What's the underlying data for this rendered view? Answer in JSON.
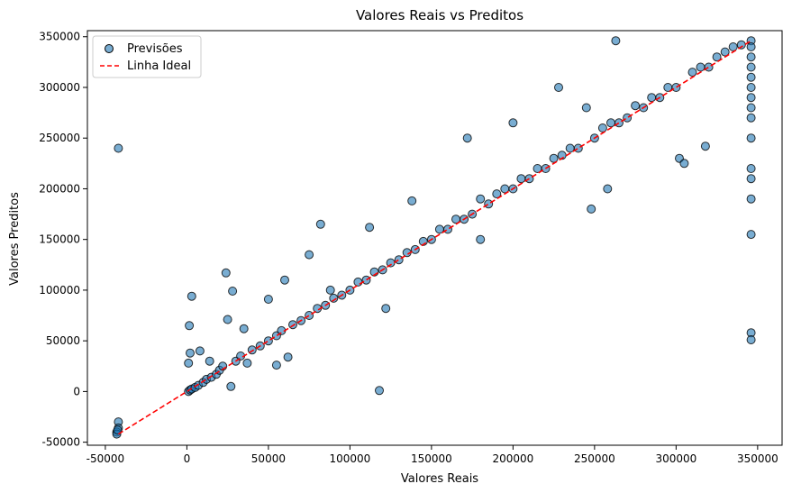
{
  "chart_data": {
    "type": "scatter",
    "title": "Valores Reais vs Preditos",
    "xlabel": "Valores Reais",
    "ylabel": "Valores Preditos",
    "xlim": [
      -61000,
      365000
    ],
    "ylim": [
      -53000,
      356000
    ],
    "xticks": [
      -50000,
      0,
      50000,
      100000,
      150000,
      200000,
      250000,
      300000,
      350000
    ],
    "yticks": [
      -50000,
      0,
      50000,
      100000,
      150000,
      200000,
      250000,
      300000,
      350000
    ],
    "grid": false,
    "legend": {
      "position": "top-left",
      "entries": [
        {
          "label": "Previsões",
          "marker": "circle",
          "color": "#1f77b4"
        },
        {
          "label": "Linha Ideal",
          "marker": "dashed-line",
          "color": "#ff0000"
        }
      ]
    },
    "series": [
      {
        "name": "Previsões",
        "color": "#1f77b4",
        "edgecolor": "#000000",
        "alpha": 0.6,
        "note_visible_outliers": true,
        "points": [
          [
            -42000,
            240000
          ],
          [
            -42000,
            -30000
          ],
          [
            -42000,
            -36000
          ],
          [
            -43000,
            -40000
          ],
          [
            -43000,
            -42000
          ],
          [
            -42500,
            -38000
          ],
          [
            1000,
            0
          ],
          [
            2000,
            1500
          ],
          [
            3000,
            2500
          ],
          [
            1500,
            65000
          ],
          [
            3000,
            94000
          ],
          [
            2000,
            38000
          ],
          [
            1000,
            28000
          ],
          [
            5000,
            4000
          ],
          [
            7000,
            6000
          ],
          [
            10000,
            9000
          ],
          [
            12000,
            12000
          ],
          [
            15000,
            14000
          ],
          [
            18000,
            17000
          ],
          [
            20000,
            21000
          ],
          [
            8000,
            40000
          ],
          [
            14000,
            30000
          ],
          [
            24000,
            117000
          ],
          [
            28000,
            99000
          ],
          [
            25000,
            71000
          ],
          [
            22000,
            25000
          ],
          [
            27000,
            5000
          ],
          [
            30000,
            30000
          ],
          [
            33000,
            35000
          ],
          [
            35000,
            62000
          ],
          [
            37000,
            28000
          ],
          [
            40000,
            41000
          ],
          [
            45000,
            45000
          ],
          [
            50000,
            50000
          ],
          [
            50000,
            91000
          ],
          [
            55000,
            55000
          ],
          [
            55000,
            26000
          ],
          [
            58000,
            60000
          ],
          [
            60000,
            110000
          ],
          [
            62000,
            34000
          ],
          [
            65000,
            66000
          ],
          [
            70000,
            70000
          ],
          [
            75000,
            75000
          ],
          [
            75000,
            135000
          ],
          [
            80000,
            82000
          ],
          [
            82000,
            165000
          ],
          [
            85000,
            85000
          ],
          [
            88000,
            100000
          ],
          [
            90000,
            92000
          ],
          [
            95000,
            95000
          ],
          [
            100000,
            100000
          ],
          [
            105000,
            108000
          ],
          [
            110000,
            110000
          ],
          [
            112000,
            162000
          ],
          [
            115000,
            118000
          ],
          [
            118000,
            1000
          ],
          [
            120000,
            120000
          ],
          [
            122000,
            82000
          ],
          [
            125000,
            127000
          ],
          [
            130000,
            130000
          ],
          [
            135000,
            137000
          ],
          [
            138000,
            188000
          ],
          [
            140000,
            140000
          ],
          [
            145000,
            148000
          ],
          [
            150000,
            150000
          ],
          [
            155000,
            160000
          ],
          [
            160000,
            160000
          ],
          [
            165000,
            170000
          ],
          [
            170000,
            170000
          ],
          [
            172000,
            250000
          ],
          [
            175000,
            175000
          ],
          [
            180000,
            190000
          ],
          [
            180000,
            150000
          ],
          [
            185000,
            185000
          ],
          [
            190000,
            195000
          ],
          [
            195000,
            200000
          ],
          [
            200000,
            200000
          ],
          [
            200000,
            265000
          ],
          [
            205000,
            210000
          ],
          [
            210000,
            210000
          ],
          [
            215000,
            220000
          ],
          [
            220000,
            220000
          ],
          [
            225000,
            230000
          ],
          [
            228000,
            300000
          ],
          [
            230000,
            233000
          ],
          [
            235000,
            240000
          ],
          [
            240000,
            240000
          ],
          [
            245000,
            280000
          ],
          [
            248000,
            180000
          ],
          [
            250000,
            250000
          ],
          [
            255000,
            260000
          ],
          [
            258000,
            200000
          ],
          [
            260000,
            265000
          ],
          [
            263000,
            346000
          ],
          [
            265000,
            265000
          ],
          [
            270000,
            270000
          ],
          [
            275000,
            282000
          ],
          [
            280000,
            280000
          ],
          [
            285000,
            290000
          ],
          [
            290000,
            290000
          ],
          [
            295000,
            300000
          ],
          [
            300000,
            300000
          ],
          [
            302000,
            230000
          ],
          [
            305000,
            225000
          ],
          [
            310000,
            315000
          ],
          [
            315000,
            320000
          ],
          [
            318000,
            242000
          ],
          [
            320000,
            320000
          ],
          [
            325000,
            330000
          ],
          [
            330000,
            335000
          ],
          [
            335000,
            340000
          ],
          [
            340000,
            342000
          ],
          [
            346000,
            346000
          ],
          [
            346000,
            340000
          ],
          [
            346000,
            330000
          ],
          [
            346000,
            320000
          ],
          [
            346000,
            310000
          ],
          [
            346000,
            300000
          ],
          [
            346000,
            290000
          ],
          [
            346000,
            280000
          ],
          [
            346000,
            270000
          ],
          [
            346000,
            250000
          ],
          [
            346000,
            220000
          ],
          [
            346000,
            210000
          ],
          [
            346000,
            190000
          ],
          [
            346000,
            155000
          ],
          [
            346000,
            58000
          ],
          [
            346000,
            51000
          ]
        ]
      }
    ],
    "ideal_line": {
      "name": "Linha Ideal",
      "x": [
        -42000,
        346000
      ],
      "y": [
        -42000,
        346000
      ],
      "color": "#ff0000",
      "style": "dashed"
    }
  }
}
